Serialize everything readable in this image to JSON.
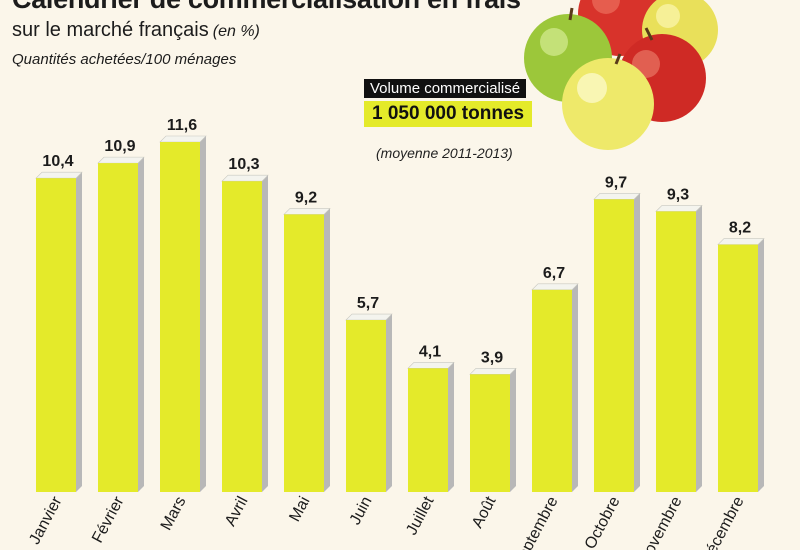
{
  "header": {
    "title": "Calendrier de commercialisation en frais",
    "subtitle": "sur le marché français",
    "subtitle_unit": "(en %)",
    "subtitle2": "Quantités achetées/100 ménages"
  },
  "info_box": {
    "label": "Volume commercialisé",
    "value": "1 050 000 tonnes",
    "note": "(moyenne 2011-2013)"
  },
  "colors": {
    "bar": "#e4ea2a",
    "bar_side": "#b8b8b8",
    "background": "#fbf6ea",
    "text": "#1c1c1c"
  },
  "chart_data": {
    "type": "bar",
    "categories": [
      "Janvier",
      "Février",
      "Mars",
      "Avril",
      "Mai",
      "Juin",
      "Juillet",
      "Août",
      "Septembre",
      "Octobre",
      "Novembre",
      "Décembre"
    ],
    "values": [
      10.4,
      10.9,
      11.6,
      10.3,
      9.2,
      5.7,
      4.1,
      3.9,
      6.7,
      9.7,
      9.3,
      8.2
    ],
    "value_labels": [
      "10,4",
      "10,9",
      "11,6",
      "10,3",
      "9,2",
      "5,7",
      "4,1",
      "3,9",
      "6,7",
      "9,7",
      "9,3",
      "8,2"
    ],
    "title": "Calendrier de commercialisation en frais",
    "xlabel": "",
    "ylabel": "",
    "ylim": [
      0,
      12
    ],
    "grid": false,
    "legend": "none"
  }
}
